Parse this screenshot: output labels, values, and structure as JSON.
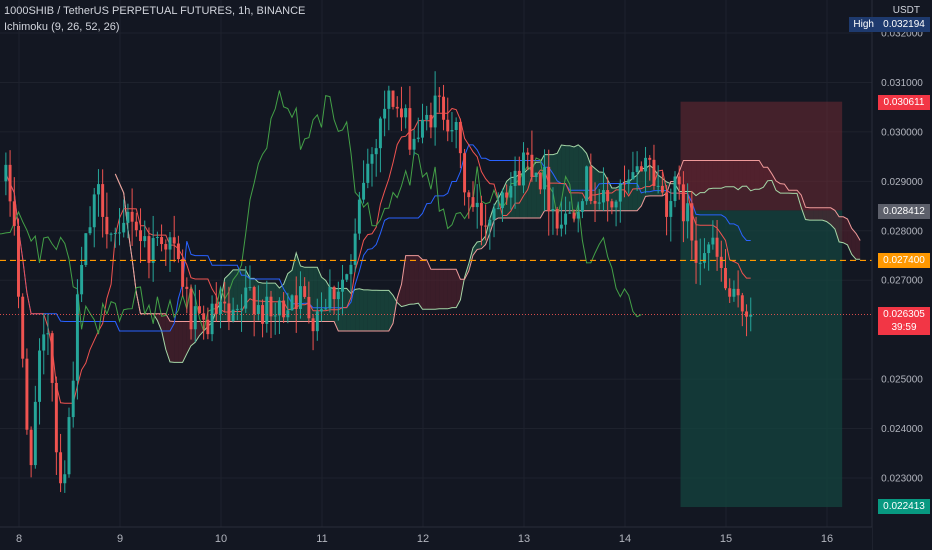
{
  "header": {
    "symbol_line": "1000SHIB / TetherUS PERPETUAL FUTURES, 1h, BINANCE",
    "indicator_line": "Ichimoku (9, 26, 52, 26)"
  },
  "axis": {
    "currency": "USDT"
  },
  "price_labels": {
    "high_name": "High",
    "high_value": "0.032194",
    "stop": "0.030611",
    "gray": "0.028412",
    "entry": "0.027400",
    "current": "0.026305",
    "countdown": "39:59",
    "target": "0.022413"
  },
  "colors": {
    "background": "#131722",
    "bull": "#26a69a",
    "bear": "#ef5350",
    "tenkan": "#ef5350",
    "kijun": "#2962ff",
    "chikou": "#43a047",
    "span_a": "#a5d6a7",
    "span_b": "#ef9a9a",
    "entry_line": "#ff9800",
    "stop_zone": "#6e2a33",
    "target_zone": "#14443f"
  },
  "chart_data": {
    "type": "candlestick",
    "title": "1000SHIB / TetherUS PERPETUAL FUTURES, 1h, BINANCE",
    "x_ticks": [
      "8",
      "9",
      "10",
      "11",
      "12",
      "13",
      "14",
      "15",
      "16"
    ],
    "y_ticks": [
      "0.032000",
      "0.031000",
      "0.030000",
      "0.029000",
      "0.028000",
      "0.027000",
      "0.025000",
      "0.024000",
      "0.023000"
    ],
    "ylim": [
      0.0221,
      0.0323
    ],
    "x_range_days": [
      7.85,
      16.5
    ],
    "legend": "Ichimoku (9, 26, 52, 26)",
    "grid": true,
    "price_anchors": [
      [
        7.87,
        0.029
      ],
      [
        7.95,
        0.0284
      ],
      [
        8.03,
        0.0254
      ],
      [
        8.1,
        0.0232
      ],
      [
        8.2,
        0.0252
      ],
      [
        8.3,
        0.0262
      ],
      [
        8.38,
        0.0232
      ],
      [
        8.46,
        0.0232
      ],
      [
        8.52,
        0.0248
      ],
      [
        8.6,
        0.027
      ],
      [
        8.7,
        0.0281
      ],
      [
        8.8,
        0.0288
      ],
      [
        8.9,
        0.028
      ],
      [
        9.0,
        0.0276
      ],
      [
        9.1,
        0.0285
      ],
      [
        9.2,
        0.0279
      ],
      [
        9.3,
        0.0276
      ],
      [
        9.4,
        0.028
      ],
      [
        9.5,
        0.0277
      ],
      [
        9.6,
        0.0272
      ],
      [
        9.7,
        0.0262
      ],
      [
        9.8,
        0.026
      ],
      [
        9.9,
        0.0262
      ],
      [
        10.0,
        0.0264
      ],
      [
        10.1,
        0.026
      ],
      [
        10.2,
        0.0264
      ],
      [
        10.3,
        0.0268
      ],
      [
        10.4,
        0.0264
      ],
      [
        10.5,
        0.0262
      ],
      [
        10.6,
        0.0264
      ],
      [
        10.7,
        0.0268
      ],
      [
        10.8,
        0.0266
      ],
      [
        10.9,
        0.0263
      ],
      [
        11.0,
        0.0266
      ],
      [
        11.1,
        0.0268
      ],
      [
        11.2,
        0.027
      ],
      [
        11.3,
        0.0272
      ],
      [
        11.4,
        0.029
      ],
      [
        11.5,
        0.0296
      ],
      [
        11.6,
        0.0305
      ],
      [
        11.7,
        0.0307
      ],
      [
        11.8,
        0.0302
      ],
      [
        11.9,
        0.0299
      ],
      [
        12.0,
        0.03
      ],
      [
        12.1,
        0.0305
      ],
      [
        12.2,
        0.0305
      ],
      [
        12.3,
        0.0302
      ],
      [
        12.4,
        0.029
      ],
      [
        12.5,
        0.0284
      ],
      [
        12.6,
        0.0282
      ],
      [
        12.7,
        0.0285
      ],
      [
        12.8,
        0.0291
      ],
      [
        12.9,
        0.0289
      ],
      [
        13.0,
        0.0295
      ],
      [
        13.1,
        0.0294
      ],
      [
        13.2,
        0.029
      ],
      [
        13.3,
        0.0284
      ],
      [
        13.4,
        0.0282
      ],
      [
        13.5,
        0.0286
      ],
      [
        13.6,
        0.029
      ],
      [
        13.7,
        0.0288
      ],
      [
        13.8,
        0.0285
      ],
      [
        13.9,
        0.0286
      ],
      [
        14.0,
        0.0288
      ],
      [
        14.1,
        0.029
      ],
      [
        14.2,
        0.0296
      ],
      [
        14.3,
        0.029
      ],
      [
        14.4,
        0.0286
      ],
      [
        14.5,
        0.0288
      ],
      [
        14.6,
        0.0284
      ],
      [
        14.7,
        0.0276
      ],
      [
        14.8,
        0.0278
      ],
      [
        14.9,
        0.0275
      ],
      [
        15.0,
        0.0268
      ],
      [
        15.1,
        0.0264
      ],
      [
        15.2,
        0.0265
      ],
      [
        15.25,
        0.0263
      ]
    ],
    "price_labels_on_axis": {
      "high": 0.032194,
      "stop_loss": 0.030611,
      "gray": 0.028412,
      "entry": 0.0274,
      "current": 0.026305,
      "target": 0.022413
    },
    "position_box": {
      "x_start": 14.55,
      "x_end": 16.15,
      "stop": 0.030611,
      "entry": 0.028412,
      "target": 0.022413
    }
  }
}
